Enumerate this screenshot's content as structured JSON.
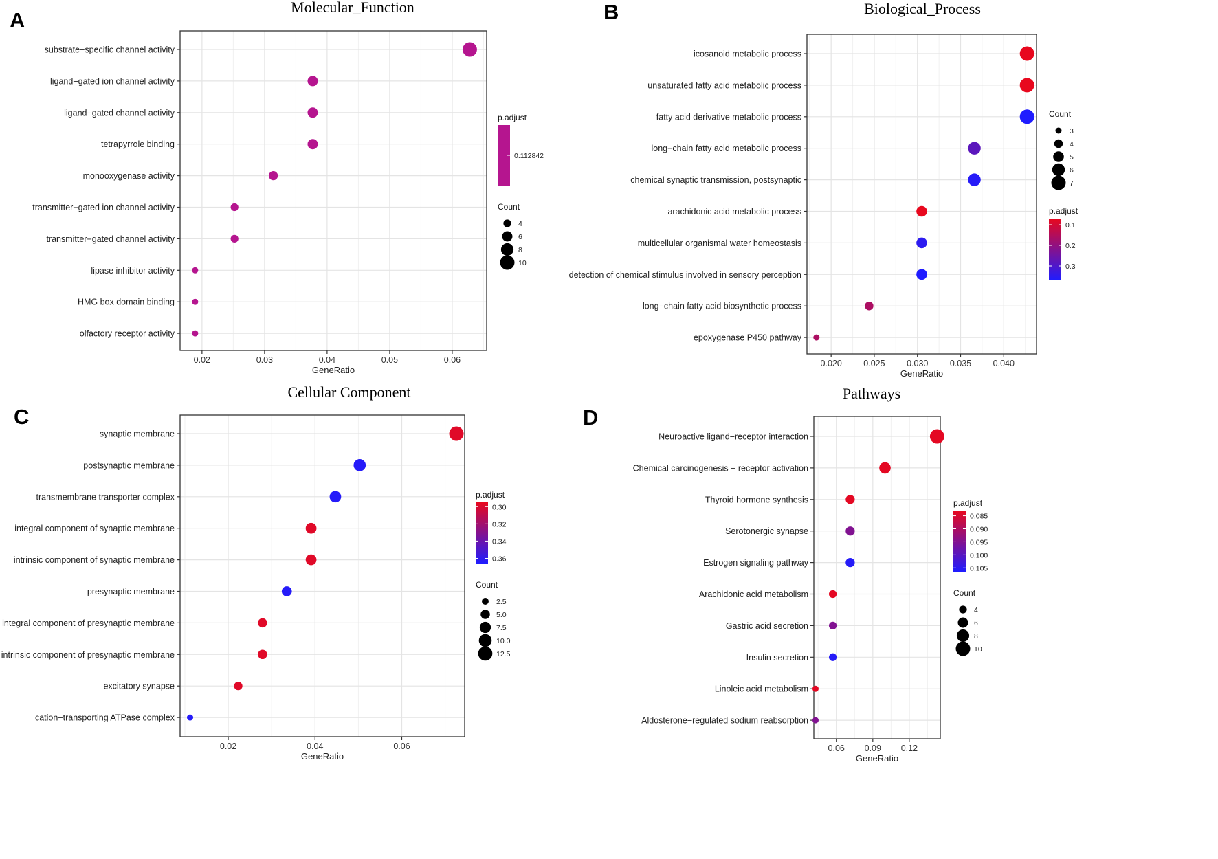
{
  "chart_data": [
    {
      "type": "scatter",
      "panel_letter": "A",
      "title": "Molecular_Function",
      "xlabel": "GeneRatio",
      "ylabel": "",
      "xlim": [
        0.0165,
        0.0655
      ],
      "xticks": [
        0.02,
        0.03,
        0.04,
        0.05,
        0.06
      ],
      "xtick_labels": [
        "0.02",
        "0.03",
        "0.04",
        "0.05",
        "0.06"
      ],
      "grid": true,
      "terms": [
        {
          "label": "substrate−specific channel activity",
          "gene_ratio": 0.0628,
          "count": 10,
          "p_adjust": 0.112842
        },
        {
          "label": "ligand−gated ion channel activity",
          "gene_ratio": 0.0377,
          "count": 6,
          "p_adjust": 0.112842
        },
        {
          "label": "ligand−gated channel activity",
          "gene_ratio": 0.0377,
          "count": 6,
          "p_adjust": 0.112842
        },
        {
          "label": "tetrapyrrole binding",
          "gene_ratio": 0.0377,
          "count": 6,
          "p_adjust": 0.112842
        },
        {
          "label": "monooxygenase activity",
          "gene_ratio": 0.0314,
          "count": 5,
          "p_adjust": 0.112842
        },
        {
          "label": "transmitter−gated ion channel activity",
          "gene_ratio": 0.0252,
          "count": 4,
          "p_adjust": 0.112842
        },
        {
          "label": "transmitter−gated channel activity",
          "gene_ratio": 0.0252,
          "count": 4,
          "p_adjust": 0.112842
        },
        {
          "label": "lipase inhibitor activity",
          "gene_ratio": 0.0189,
          "count": 3,
          "p_adjust": 0.112842
        },
        {
          "label": "HMG box domain binding",
          "gene_ratio": 0.0189,
          "count": 3,
          "p_adjust": 0.112842
        },
        {
          "label": "olfactory receptor activity",
          "gene_ratio": 0.0189,
          "count": 3,
          "p_adjust": 0.112842
        }
      ],
      "size_scale": {
        "min_count": 3,
        "max_count": 10,
        "min_r": 4.5,
        "max_r": 10.5
      },
      "legend_padjust": {
        "title": "p.adjust",
        "type": "single",
        "color": "#b5158f",
        "label": "0.112842"
      },
      "legend_count": {
        "title": "Count",
        "values": [
          4,
          6,
          8,
          10
        ],
        "labels": [
          "4",
          "6",
          "8",
          "10"
        ]
      },
      "legend_position": "right"
    },
    {
      "type": "scatter",
      "panel_letter": "B",
      "title": "Biological_Process",
      "xlabel": "GeneRatio",
      "ylabel": "",
      "xlim": [
        0.0172,
        0.0438
      ],
      "xticks": [
        0.02,
        0.025,
        0.03,
        0.035,
        0.04
      ],
      "xtick_labels": [
        "0.020",
        "0.025",
        "0.030",
        "0.035",
        "0.040"
      ],
      "grid": true,
      "terms": [
        {
          "label": "icosanoid metabolic process",
          "gene_ratio": 0.0427,
          "count": 7,
          "p_adjust": 0.07
        },
        {
          "label": "unsaturated fatty acid metabolic process",
          "gene_ratio": 0.0427,
          "count": 7,
          "p_adjust": 0.07
        },
        {
          "label": "fatty acid derivative metabolic process",
          "gene_ratio": 0.0427,
          "count": 7,
          "p_adjust": 0.37
        },
        {
          "label": "long−chain fatty acid metabolic process",
          "gene_ratio": 0.0366,
          "count": 6,
          "p_adjust": 0.28
        },
        {
          "label": "chemical synaptic transmission, postsynaptic",
          "gene_ratio": 0.0366,
          "count": 6,
          "p_adjust": 0.36
        },
        {
          "label": "arachidonic acid metabolic process",
          "gene_ratio": 0.0305,
          "count": 5,
          "p_adjust": 0.07
        },
        {
          "label": "multicellular organismal water homeostasis",
          "gene_ratio": 0.0305,
          "count": 5,
          "p_adjust": 0.35
        },
        {
          "label": "detection of chemical stimulus involved in sensory perception",
          "gene_ratio": 0.0305,
          "count": 5,
          "p_adjust": 0.37
        },
        {
          "label": "long−chain fatty acid biosynthetic process",
          "gene_ratio": 0.0244,
          "count": 4,
          "p_adjust": 0.16
        },
        {
          "label": "epoxygenase P450 pathway",
          "gene_ratio": 0.0183,
          "count": 3,
          "p_adjust": 0.16
        }
      ],
      "size_scale": {
        "min_count": 3,
        "max_count": 7,
        "min_r": 4.5,
        "max_r": 10.5
      },
      "legend_count": {
        "title": "Count",
        "values": [
          3,
          4,
          5,
          6,
          7
        ],
        "labels": [
          "3",
          "4",
          "5",
          "6",
          "7"
        ]
      },
      "legend_padjust": {
        "title": "p.adjust",
        "type": "gradient",
        "range": [
          0.07,
          0.37
        ],
        "ticks": [
          0.1,
          0.2,
          0.3
        ],
        "tick_labels": [
          "0.1",
          "0.2",
          "0.3"
        ],
        "low_color": "#e8081e",
        "high_color": "#1f1cff"
      },
      "legend_position": "right"
    },
    {
      "type": "scatter",
      "panel_letter": "C",
      "title": "Cellular  Component",
      "xlabel": "GeneRatio",
      "ylabel": "",
      "xlim": [
        0.0089,
        0.0745
      ],
      "xticks": [
        0.02,
        0.04,
        0.06
      ],
      "xtick_labels": [
        "0.02",
        "0.04",
        "0.06"
      ],
      "grid": true,
      "terms": [
        {
          "label": "synaptic membrane",
          "gene_ratio": 0.0726,
          "count": 13,
          "p_adjust": 0.298
        },
        {
          "label": "postsynaptic membrane",
          "gene_ratio": 0.0503,
          "count": 9,
          "p_adjust": 0.364
        },
        {
          "label": "transmembrane transporter complex",
          "gene_ratio": 0.0447,
          "count": 8,
          "p_adjust": 0.364
        },
        {
          "label": "integral component of synaptic membrane",
          "gene_ratio": 0.0391,
          "count": 7,
          "p_adjust": 0.298
        },
        {
          "label": "intrinsic component of synaptic membrane",
          "gene_ratio": 0.0391,
          "count": 7,
          "p_adjust": 0.298
        },
        {
          "label": "presynaptic membrane",
          "gene_ratio": 0.0335,
          "count": 6,
          "p_adjust": 0.364
        },
        {
          "label": "integral component of presynaptic membrane",
          "gene_ratio": 0.0279,
          "count": 5,
          "p_adjust": 0.298
        },
        {
          "label": "intrinsic component of presynaptic membrane",
          "gene_ratio": 0.0279,
          "count": 5,
          "p_adjust": 0.298
        },
        {
          "label": "excitatory synapse",
          "gene_ratio": 0.0223,
          "count": 4,
          "p_adjust": 0.298
        },
        {
          "label": "cation−transporting ATPase complex",
          "gene_ratio": 0.0112,
          "count": 2,
          "p_adjust": 0.364
        }
      ],
      "size_scale": {
        "min_count": 2,
        "max_count": 13,
        "min_r": 4.5,
        "max_r": 10.5
      },
      "legend_padjust": {
        "title": "p.adjust",
        "type": "gradient",
        "range": [
          0.295,
          0.366
        ],
        "ticks": [
          0.3,
          0.32,
          0.34,
          0.36
        ],
        "tick_labels": [
          "0.30",
          "0.32",
          "0.34",
          "0.36"
        ],
        "low_color": "#e8081e",
        "high_color": "#1f1cff"
      },
      "legend_count": {
        "title": "Count",
        "values": [
          2.5,
          5,
          7.5,
          10,
          12.5
        ],
        "labels": [
          "2.5",
          "5.0",
          "7.5",
          "10.0",
          "12.5"
        ]
      },
      "legend_position": "right"
    },
    {
      "type": "scatter",
      "panel_letter": "D",
      "title": "Pathways",
      "xlabel": "GeneRatio",
      "ylabel": "",
      "xlim": [
        0.0415,
        0.1455
      ],
      "xticks": [
        0.06,
        0.09,
        0.12
      ],
      "xtick_labels": [
        "0.06",
        "0.09",
        "0.12"
      ],
      "grid": true,
      "terms": [
        {
          "label": "Neuroactive ligand−receptor interaction",
          "gene_ratio": 0.1429,
          "count": 10,
          "p_adjust": 0.0835
        },
        {
          "label": "Chemical carcinogenesis − receptor activation",
          "gene_ratio": 0.1,
          "count": 7,
          "p_adjust": 0.0835
        },
        {
          "label": "Thyroid hormone synthesis",
          "gene_ratio": 0.0714,
          "count": 5,
          "p_adjust": 0.0835
        },
        {
          "label": "Serotonergic synapse",
          "gene_ratio": 0.0714,
          "count": 5,
          "p_adjust": 0.095
        },
        {
          "label": "Estrogen signaling pathway",
          "gene_ratio": 0.0714,
          "count": 5,
          "p_adjust": 0.1058
        },
        {
          "label": "Arachidonic acid metabolism",
          "gene_ratio": 0.0571,
          "count": 4,
          "p_adjust": 0.0835
        },
        {
          "label": "Gastric acid secretion",
          "gene_ratio": 0.0571,
          "count": 4,
          "p_adjust": 0.095
        },
        {
          "label": "Insulin secretion",
          "gene_ratio": 0.0571,
          "count": 4,
          "p_adjust": 0.1058
        },
        {
          "label": "Linoleic acid metabolism",
          "gene_ratio": 0.0429,
          "count": 3,
          "p_adjust": 0.0835
        },
        {
          "label": "Aldosterone−regulated sodium reabsorption",
          "gene_ratio": 0.0429,
          "count": 3,
          "p_adjust": 0.095
        }
      ],
      "size_scale": {
        "min_count": 3,
        "max_count": 10,
        "min_r": 4.5,
        "max_r": 10.5
      },
      "legend_padjust": {
        "title": "p.adjust",
        "type": "gradient",
        "range": [
          0.083,
          0.1065
        ],
        "ticks": [
          0.085,
          0.09,
          0.095,
          0.1,
          0.105
        ],
        "tick_labels": [
          "0.085",
          "0.090",
          "0.095",
          "0.100",
          "0.105"
        ],
        "low_color": "#e8081e",
        "high_color": "#1f1cff"
      },
      "legend_count": {
        "title": "Count",
        "values": [
          4,
          6,
          8,
          10
        ],
        "labels": [
          "4",
          "6",
          "8",
          "10"
        ]
      },
      "legend_position": "right"
    }
  ]
}
